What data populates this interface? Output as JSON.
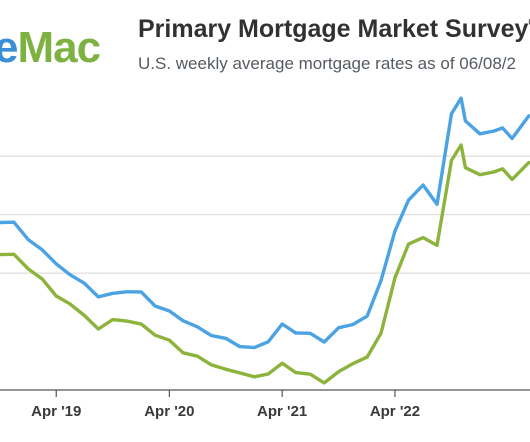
{
  "header": {
    "logo_prefix": "e",
    "logo_main": "Mac",
    "title": "Primary Mortgage Market Survey",
    "title_mark": "®",
    "subtitle": "U.S. weekly average mortgage rates as of 06/08/2"
  },
  "colors": {
    "series_30yr": "#4ba3e3",
    "series_15yr": "#8cb33c",
    "logo_blue": "#3c8fd6",
    "logo_green": "#7db243"
  },
  "chart_data": {
    "type": "line",
    "x_type": "date",
    "xlim": [
      "2018-10-01",
      "2023-06-12"
    ],
    "ylim": [
      2.0,
      7.2
    ],
    "y_gridlines": [
      4.0,
      5.0,
      6.0
    ],
    "x_ticks": [
      {
        "date": "2019-04-01",
        "label": "Apr '19"
      },
      {
        "date": "2020-04-01",
        "label": "Apr '20"
      },
      {
        "date": "2021-04-01",
        "label": "Apr '21"
      },
      {
        "date": "2022-04-01",
        "label": "Apr '22"
      }
    ],
    "series": [
      {
        "key": "30yr",
        "points": [
          [
            "2018-10-01",
            4.85
          ],
          [
            "2018-11-15",
            4.9
          ],
          [
            "2019-01-01",
            4.55
          ],
          [
            "2019-02-15",
            4.4
          ],
          [
            "2019-04-01",
            4.15
          ],
          [
            "2019-05-15",
            4.0
          ],
          [
            "2019-07-01",
            3.8
          ],
          [
            "2019-08-15",
            3.6
          ],
          [
            "2019-10-01",
            3.65
          ],
          [
            "2019-11-15",
            3.7
          ],
          [
            "2020-01-01",
            3.65
          ],
          [
            "2020-02-15",
            3.45
          ],
          [
            "2020-04-01",
            3.35
          ],
          [
            "2020-05-15",
            3.2
          ],
          [
            "2020-07-01",
            3.05
          ],
          [
            "2020-08-15",
            2.95
          ],
          [
            "2020-10-01",
            2.88
          ],
          [
            "2020-11-15",
            2.75
          ],
          [
            "2021-01-01",
            2.7
          ],
          [
            "2021-02-15",
            2.85
          ],
          [
            "2021-04-01",
            3.12
          ],
          [
            "2021-05-15",
            2.98
          ],
          [
            "2021-07-01",
            2.95
          ],
          [
            "2021-08-15",
            2.85
          ],
          [
            "2021-10-01",
            3.05
          ],
          [
            "2021-11-15",
            3.12
          ],
          [
            "2022-01-01",
            3.25
          ],
          [
            "2022-02-15",
            3.9
          ],
          [
            "2022-04-01",
            4.7
          ],
          [
            "2022-05-15",
            5.25
          ],
          [
            "2022-07-01",
            5.5
          ],
          [
            "2022-08-15",
            5.2
          ],
          [
            "2022-10-01",
            6.7
          ],
          [
            "2022-11-01",
            7.0
          ],
          [
            "2022-11-15",
            6.6
          ],
          [
            "2023-01-01",
            6.4
          ],
          [
            "2023-02-15",
            6.4
          ],
          [
            "2023-03-15",
            6.5
          ],
          [
            "2023-04-15",
            6.3
          ],
          [
            "2023-06-08",
            6.7
          ]
        ]
      },
      {
        "key": "15yr",
        "points": [
          [
            "2018-10-01",
            4.3
          ],
          [
            "2018-11-15",
            4.35
          ],
          [
            "2019-01-01",
            4.05
          ],
          [
            "2019-02-15",
            3.9
          ],
          [
            "2019-04-01",
            3.6
          ],
          [
            "2019-05-15",
            3.5
          ],
          [
            "2019-07-01",
            3.25
          ],
          [
            "2019-08-15",
            3.05
          ],
          [
            "2019-10-01",
            3.2
          ],
          [
            "2019-11-15",
            3.2
          ],
          [
            "2020-01-01",
            3.1
          ],
          [
            "2020-02-15",
            2.95
          ],
          [
            "2020-04-01",
            2.85
          ],
          [
            "2020-05-15",
            2.65
          ],
          [
            "2020-07-01",
            2.55
          ],
          [
            "2020-08-15",
            2.45
          ],
          [
            "2020-10-01",
            2.35
          ],
          [
            "2020-11-15",
            2.3
          ],
          [
            "2021-01-01",
            2.2
          ],
          [
            "2021-02-15",
            2.3
          ],
          [
            "2021-04-01",
            2.45
          ],
          [
            "2021-05-15",
            2.3
          ],
          [
            "2021-07-01",
            2.25
          ],
          [
            "2021-08-15",
            2.15
          ],
          [
            "2021-10-01",
            2.3
          ],
          [
            "2021-11-15",
            2.45
          ],
          [
            "2022-01-01",
            2.55
          ],
          [
            "2022-02-15",
            3.0
          ],
          [
            "2022-04-01",
            3.9
          ],
          [
            "2022-05-15",
            4.5
          ],
          [
            "2022-07-01",
            4.6
          ],
          [
            "2022-08-15",
            4.5
          ],
          [
            "2022-10-01",
            5.9
          ],
          [
            "2022-11-01",
            6.2
          ],
          [
            "2022-11-15",
            5.8
          ],
          [
            "2023-01-01",
            5.7
          ],
          [
            "2023-02-15",
            5.7
          ],
          [
            "2023-03-15",
            5.8
          ],
          [
            "2023-04-15",
            5.6
          ],
          [
            "2023-06-08",
            5.9
          ]
        ]
      }
    ]
  }
}
